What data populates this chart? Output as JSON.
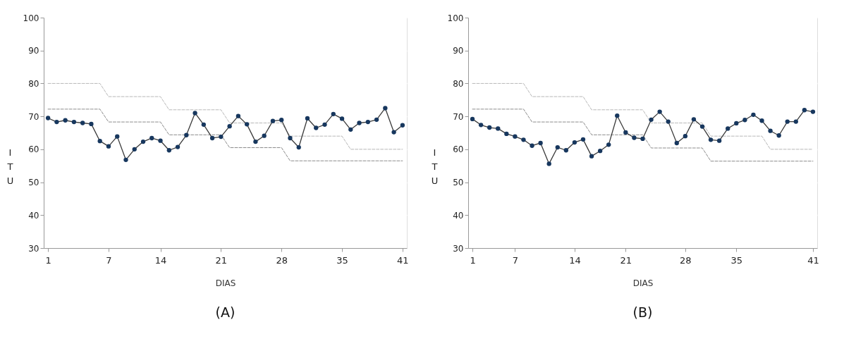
{
  "chart_data": [
    {
      "type": "line",
      "title": "(A)",
      "xlabel": "DIAS",
      "ylabel": "ITU",
      "categories": [
        "1",
        null,
        null,
        null,
        null,
        null,
        null,
        "7",
        null,
        null,
        null,
        null,
        null,
        "14",
        null,
        null,
        null,
        null,
        null,
        null,
        "21",
        null,
        null,
        null,
        null,
        null,
        null,
        "28",
        null,
        null,
        null,
        null,
        null,
        null,
        "35",
        null,
        null,
        null,
        null,
        null,
        null,
        "41"
      ],
      "ylim": [
        30,
        100
      ],
      "yticks": [
        30,
        40,
        50,
        60,
        70,
        80,
        90,
        100
      ],
      "grid": "y",
      "series": [
        {
          "color": "#3a3a3a",
          "marker": "circle",
          "line_style": "solid",
          "values": [
            69.5,
            68.3,
            68.8,
            68.3,
            68.0,
            67.7,
            62.5,
            60.9,
            63.9,
            56.8,
            60.0,
            62.3,
            63.4,
            62.6,
            59.7,
            60.7,
            64.3,
            71.0,
            67.5,
            63.4,
            63.8,
            67.0,
            70.1,
            67.6,
            62.3,
            64.1,
            68.6,
            68.9,
            63.4,
            60.6,
            69.4,
            66.5,
            67.5,
            70.7,
            69.3,
            66.0,
            68.0,
            68.3,
            69.0,
            72.5,
            65.2,
            67.3
          ]
        },
        {
          "color": "#b8b8b8",
          "marker": "none",
          "line_style": "dashed",
          "values": [
            80,
            80,
            80,
            80,
            80,
            80,
            80,
            76,
            76,
            76,
            76,
            76,
            76,
            76,
            72,
            72,
            72,
            72,
            72,
            72,
            72,
            68,
            68,
            68,
            68,
            68,
            68,
            68,
            64,
            64,
            64,
            64,
            64,
            64,
            64,
            60,
            60,
            60,
            60,
            60,
            60,
            60
          ]
        },
        {
          "color": "#8c8c8c",
          "marker": "none",
          "line_style": "dashed",
          "values": [
            72.2,
            72.2,
            72.2,
            72.2,
            72.2,
            72.2,
            72.2,
            68.3,
            68.3,
            68.3,
            68.3,
            68.3,
            68.3,
            68.3,
            64.4,
            64.4,
            64.4,
            64.4,
            64.4,
            64.4,
            64.4,
            60.5,
            60.5,
            60.5,
            60.5,
            60.5,
            60.5,
            60.5,
            56.5,
            56.5,
            56.5,
            56.5,
            56.5,
            56.5,
            56.5,
            56.5,
            56.5,
            56.5,
            56.5,
            56.5,
            56.5,
            56.5
          ]
        }
      ]
    },
    {
      "type": "line",
      "title": "(B)",
      "xlabel": "DIAS",
      "ylabel": "ITU",
      "categories": [
        "1",
        null,
        null,
        null,
        null,
        "7",
        null,
        null,
        null,
        null,
        null,
        null,
        "14",
        null,
        null,
        null,
        null,
        null,
        "21",
        null,
        null,
        null,
        null,
        null,
        null,
        "28",
        null,
        null,
        null,
        null,
        null,
        "35",
        null,
        null,
        null,
        null,
        null,
        null,
        null,
        null,
        "41"
      ],
      "ylim": [
        30,
        100
      ],
      "yticks": [
        30,
        40,
        50,
        60,
        70,
        80,
        90,
        100
      ],
      "grid": "y",
      "series": [
        {
          "color": "#3a3a3a",
          "marker": "circle",
          "line_style": "solid",
          "values": [
            69.2,
            67.4,
            66.6,
            66.3,
            64.7,
            63.9,
            62.9,
            61.1,
            61.9,
            55.6,
            60.6,
            59.7,
            62.1,
            63.0,
            57.9,
            59.5,
            61.4,
            70.2,
            65.1,
            63.5,
            63.2,
            69.0,
            71.4,
            68.4,
            61.9,
            64.0,
            69.1,
            66.9,
            62.9,
            62.6,
            66.3,
            67.9,
            68.9,
            70.5,
            68.7,
            65.6,
            64.2,
            68.4,
            68.4,
            71.9,
            71.4
          ]
        },
        {
          "color": "#b8b8b8",
          "marker": "none",
          "line_style": "dashed",
          "values": [
            80,
            80,
            80,
            80,
            80,
            80,
            80,
            76,
            76,
            76,
            76,
            76,
            76,
            76,
            72,
            72,
            72,
            72,
            72,
            72,
            72,
            68,
            68,
            68,
            68,
            68,
            68,
            68,
            64,
            64,
            64,
            64,
            64,
            64,
            64,
            60,
            60,
            60,
            60,
            60,
            60
          ]
        },
        {
          "color": "#8c8c8c",
          "marker": "none",
          "line_style": "dashed",
          "values": [
            72.2,
            72.2,
            72.2,
            72.2,
            72.2,
            72.2,
            72.2,
            68.3,
            68.3,
            68.3,
            68.3,
            68.3,
            68.3,
            68.3,
            64.4,
            64.4,
            64.4,
            64.4,
            64.4,
            64.4,
            64.4,
            60.4,
            60.4,
            60.4,
            60.4,
            60.4,
            60.4,
            60.4,
            56.4,
            56.4,
            56.4,
            56.4,
            56.4,
            56.4,
            56.4,
            56.4,
            56.4,
            56.4,
            56.4,
            56.4,
            56.4
          ]
        }
      ]
    }
  ]
}
